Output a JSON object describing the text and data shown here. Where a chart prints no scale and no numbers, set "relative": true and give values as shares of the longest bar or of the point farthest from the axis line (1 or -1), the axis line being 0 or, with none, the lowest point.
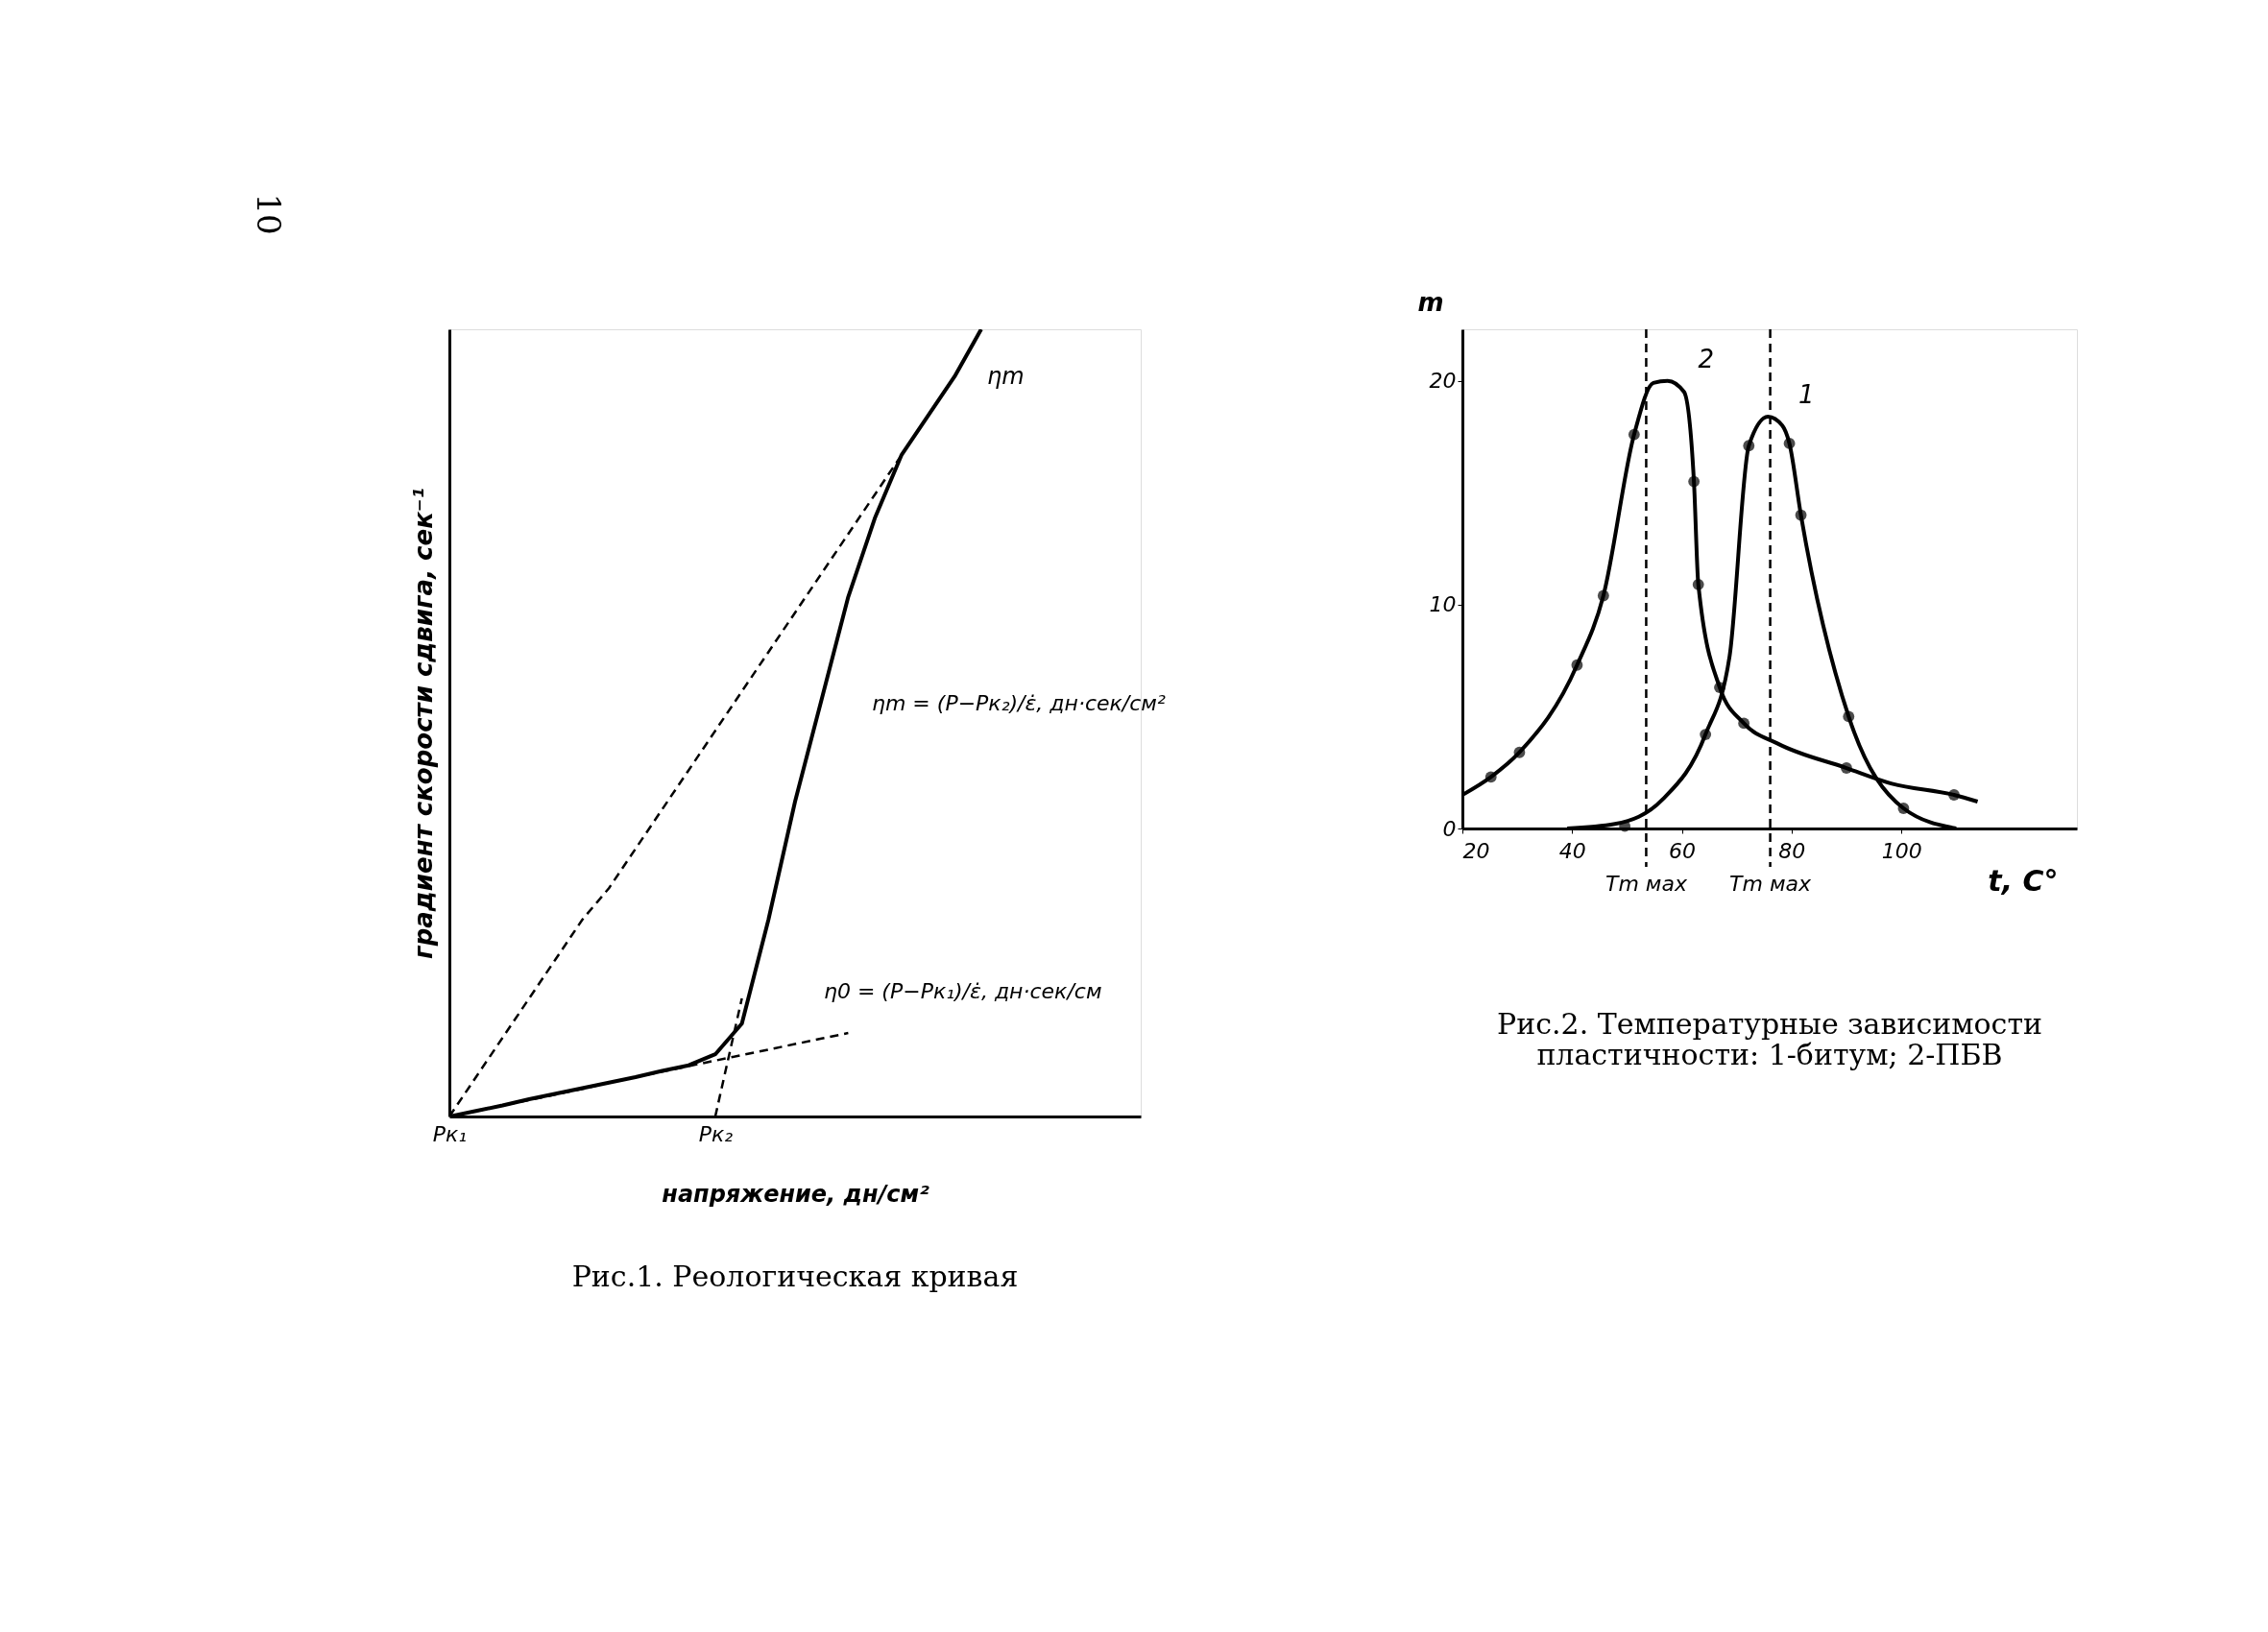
{
  "chart_data": [
    {
      "type": "line",
      "title": "Рис.1. Реологическая кривая",
      "xlabel": "напряжение, дн/см²",
      "ylabel": "градиент скорости сдвига, сек⁻¹",
      "relative": true,
      "tick_labels": "x",
      "grid": false,
      "categories": [
        "Pк₁",
        null,
        null,
        null,
        null,
        null,
        null,
        null,
        null,
        null,
        "Pк₂",
        null,
        null,
        null,
        null,
        null,
        null,
        null,
        null,
        null,
        null,
        null,
        null,
        null,
        null,
        null,
        null
      ],
      "series": [
        {
          "color": "#000000",
          "line_style": "solid",
          "values": [
            0,
            0.007,
            0.014,
            0.022,
            0.029,
            0.036,
            0.043,
            0.05,
            0.058,
            0.065,
            0.079,
            0.118,
            0.25,
            0.4,
            0.53,
            0.66,
            0.76,
            0.84,
            0.89,
            0.94,
            1.0,
            null,
            null,
            null,
            null,
            null,
            null
          ]
        },
        {
          "color": "#000000",
          "line_style": "dashed",
          "values": [
            0,
            0.05,
            0.1,
            0.15,
            0.2,
            0.25,
            0.29,
            0.34,
            0.39,
            0.44,
            0.49,
            0.54,
            0.59,
            0.64,
            0.69,
            0.74,
            0.79,
            0.84,
            null,
            null,
            null,
            null,
            null,
            null,
            null,
            null,
            null
          ]
        },
        {
          "color": "#000000",
          "line_style": "dashed",
          "values": [
            0,
            0.007,
            0.014,
            0.021,
            0.028,
            0.035,
            0.043,
            0.05,
            0.057,
            0.064,
            0.071,
            0.078,
            0.085,
            0.092,
            0.099,
            0.106,
            null,
            null,
            null,
            null,
            null,
            null,
            null,
            null,
            null,
            null,
            null
          ]
        },
        {
          "color": "#000000",
          "line_style": "dashed",
          "values": [
            null,
            null,
            null,
            null,
            null,
            null,
            null,
            null,
            null,
            null,
            0,
            0.15,
            null,
            null,
            null,
            null,
            null,
            null,
            null,
            null,
            null,
            null,
            null,
            null,
            null,
            null,
            null
          ]
        }
      ],
      "annotations": [
        "10",
        "ηm",
        "ηm = (P−Pк₂)/ε̇, дн·сек/см²",
        "η0 = (P−Pк₁)/ε̇, дн·сек/см"
      ]
    },
    {
      "type": "line",
      "title": "Рис.2. Температурные зависимости пластичности: 1-битум; 2-ПБВ",
      "xlabel": "t, C°",
      "ylabel": "m",
      "grid": false,
      "xlim": [
        20,
        132
      ],
      "xticks": [
        20,
        40,
        60,
        80,
        100
      ],
      "ylim": [
        0,
        22.3
      ],
      "yticks": [
        0,
        10,
        20
      ],
      "series": [
        {
          "name": "1",
          "color": "#000000",
          "line_style": "solid",
          "x": [
            39.1,
            47.8,
            56.5,
            64.3,
            68.7,
            72.2,
            75.7,
            78.3,
            79.6,
            81.7,
            90.4,
            100.4,
            110
          ],
          "values": [
            0,
            0.2,
            1.3,
            4.2,
            7.7,
            17.1,
            18.4,
            18.0,
            17.2,
            14.0,
            5.0,
            0.9,
            0
          ]
        },
        {
          "name": "2",
          "color": "#000000",
          "line_style": "solid",
          "x": [
            20,
            25.2,
            30.4,
            40.9,
            45.7,
            51.3,
            54.8,
            57.4,
            60.4,
            62.2,
            63,
            66.9,
            71.3,
            77.4,
            90,
            98.3,
            109.6,
            113.9
          ],
          "values": [
            1.5,
            2.3,
            3.4,
            7.3,
            10.4,
            17.6,
            19.9,
            20.0,
            19.5,
            15.5,
            10.9,
            6.3,
            4.7,
            3.8,
            2.7,
            2.0,
            1.5,
            1.2
          ]
        },
        {
          "type": "scatter",
          "marker": "circle",
          "color": "#000000",
          "x": [
            49.6,
            64.3,
            72.2,
            79.6,
            81.7,
            90.4,
            100.4
          ],
          "values": [
            0.1,
            4.2,
            17.1,
            17.2,
            14.0,
            5.0,
            0.9
          ]
        },
        {
          "type": "scatter",
          "marker": "circle",
          "color": "#000000",
          "x": [
            25.2,
            30.4,
            40.9,
            45.7,
            51.3,
            62.2,
            63,
            66.9,
            71.3,
            90,
            109.6
          ],
          "values": [
            2.3,
            3.4,
            7.3,
            10.4,
            17.6,
            15.5,
            10.9,
            6.3,
            4.7,
            2.7,
            1.5
          ]
        }
      ],
      "ref_lines": [
        {
          "axis": "x",
          "value": 53.5,
          "label": "Tm мах",
          "line_style": "dashed",
          "color": "#000000"
        },
        {
          "axis": "x",
          "value": 76.1,
          "label": "Tm мах",
          "line_style": "dashed",
          "color": "#000000"
        }
      ]
    }
  ]
}
